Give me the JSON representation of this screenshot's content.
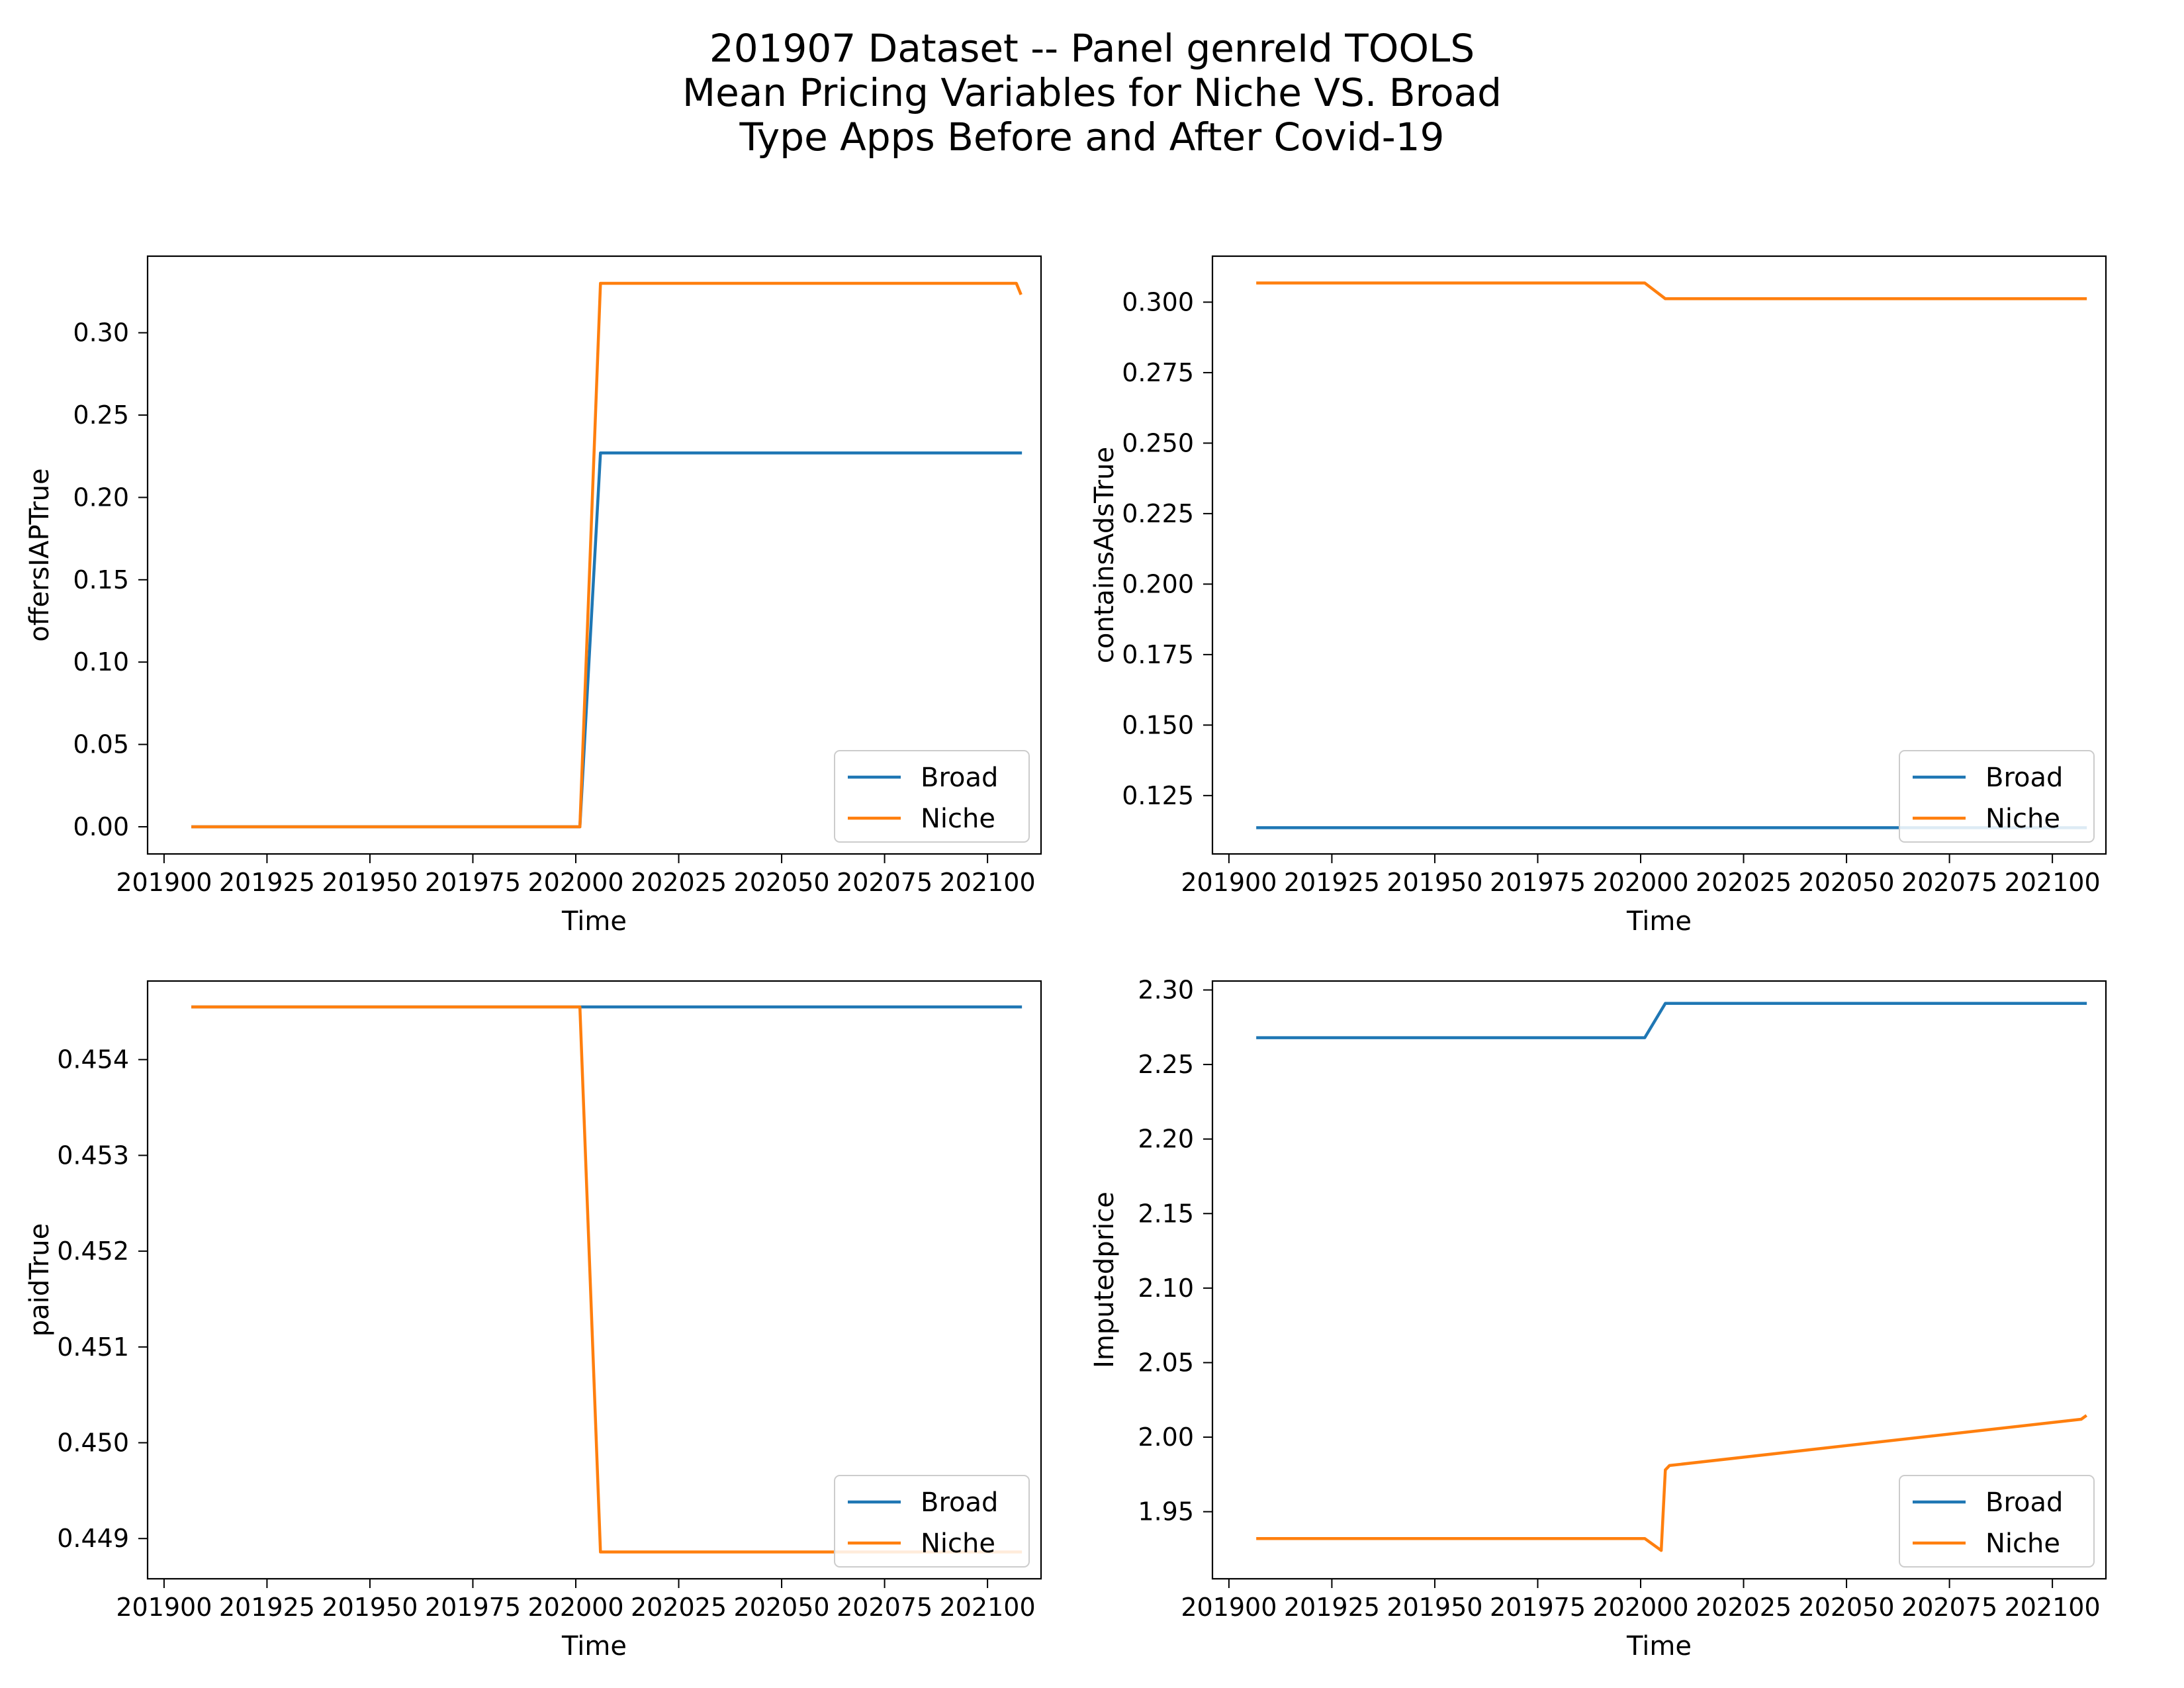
{
  "figure": {
    "title_lines": [
      "201907 Dataset -- Panel genreId TOOLS",
      "Mean Pricing Variables for Niche VS. Broad",
      "Type Apps Before and After Covid-19"
    ]
  },
  "colors": {
    "Broad": "#1f77b4",
    "Niche": "#ff7f0e"
  },
  "chart_data": [
    {
      "type": "line",
      "xlabel": "Time",
      "ylabel": "offersIAPTrue",
      "xlim": [
        201896,
        202113
      ],
      "ylim": [
        -0.0165,
        0.3465
      ],
      "xticks": [
        201900,
        201925,
        201950,
        201975,
        202000,
        202025,
        202050,
        202075,
        202100
      ],
      "yticks": [
        0.0,
        0.05,
        0.1,
        0.15,
        0.2,
        0.25,
        0.3
      ],
      "ytick_labels": [
        "0.00",
        "0.05",
        "0.10",
        "0.15",
        "0.20",
        "0.25",
        "0.30"
      ],
      "legend": "lower-right",
      "grid": false,
      "series": [
        {
          "name": "Broad",
          "x": [
            201907,
            202001,
            202006,
            202108
          ],
          "y": [
            0.0,
            0.0,
            0.227,
            0.227
          ]
        },
        {
          "name": "Niche",
          "x": [
            201907,
            202001,
            202006,
            202107,
            202108
          ],
          "y": [
            0.0,
            0.0,
            0.33,
            0.33,
            0.324
          ]
        }
      ]
    },
    {
      "type": "line",
      "xlabel": "Time",
      "ylabel": "containsAdsTrue",
      "xlim": [
        201896,
        202113
      ],
      "ylim": [
        0.1043,
        0.3163
      ],
      "xticks": [
        201900,
        201925,
        201950,
        201975,
        202000,
        202025,
        202050,
        202075,
        202100
      ],
      "yticks": [
        0.125,
        0.15,
        0.175,
        0.2,
        0.225,
        0.25,
        0.275,
        0.3
      ],
      "ytick_labels": [
        "0.125",
        "0.150",
        "0.175",
        "0.200",
        "0.225",
        "0.250",
        "0.275",
        "0.300"
      ],
      "legend": "lower-right",
      "grid": false,
      "series": [
        {
          "name": "Broad",
          "x": [
            201907,
            202108
          ],
          "y": [
            0.1136,
            0.1136
          ]
        },
        {
          "name": "Niche",
          "x": [
            201907,
            202001,
            202006,
            202108
          ],
          "y": [
            0.3068,
            0.3068,
            0.3012,
            0.3012
          ]
        }
      ]
    },
    {
      "type": "line",
      "xlabel": "Time",
      "ylabel": "paidTrue",
      "xlim": [
        201896,
        202113
      ],
      "ylim": [
        0.44858,
        0.45482
      ],
      "xticks": [
        201900,
        201925,
        201950,
        201975,
        202000,
        202025,
        202050,
        202075,
        202100
      ],
      "yticks": [
        0.449,
        0.45,
        0.451,
        0.452,
        0.453,
        0.454
      ],
      "ytick_labels": [
        "0.449",
        "0.450",
        "0.451",
        "0.452",
        "0.453",
        "0.454"
      ],
      "legend": "lower-right",
      "grid": false,
      "series": [
        {
          "name": "Broad",
          "x": [
            201907,
            202108
          ],
          "y": [
            0.45455,
            0.45455
          ]
        },
        {
          "name": "Niche",
          "x": [
            201907,
            202001,
            202006,
            202108
          ],
          "y": [
            0.45455,
            0.45455,
            0.44886,
            0.44886
          ]
        }
      ]
    },
    {
      "type": "line",
      "xlabel": "Time",
      "ylabel": "Imputedprice",
      "xlim": [
        201896,
        202113
      ],
      "ylim": [
        1.905,
        2.306
      ],
      "xticks": [
        201900,
        201925,
        201950,
        201975,
        202000,
        202025,
        202050,
        202075,
        202100
      ],
      "yticks": [
        1.95,
        2.0,
        2.05,
        2.1,
        2.15,
        2.2,
        2.25,
        2.3
      ],
      "ytick_labels": [
        "1.95",
        "2.00",
        "2.05",
        "2.10",
        "2.15",
        "2.20",
        "2.25",
        "2.30"
      ],
      "legend": "lower-right",
      "grid": false,
      "series": [
        {
          "name": "Broad",
          "x": [
            201907,
            202001,
            202006,
            202108
          ],
          "y": [
            2.268,
            2.268,
            2.291,
            2.291
          ]
        },
        {
          "name": "Niche",
          "x": [
            201907,
            202001,
            202005,
            202006,
            202007,
            202107,
            202108
          ],
          "y": [
            1.932,
            1.932,
            1.924,
            1.978,
            1.981,
            2.012,
            2.014
          ]
        }
      ]
    }
  ]
}
